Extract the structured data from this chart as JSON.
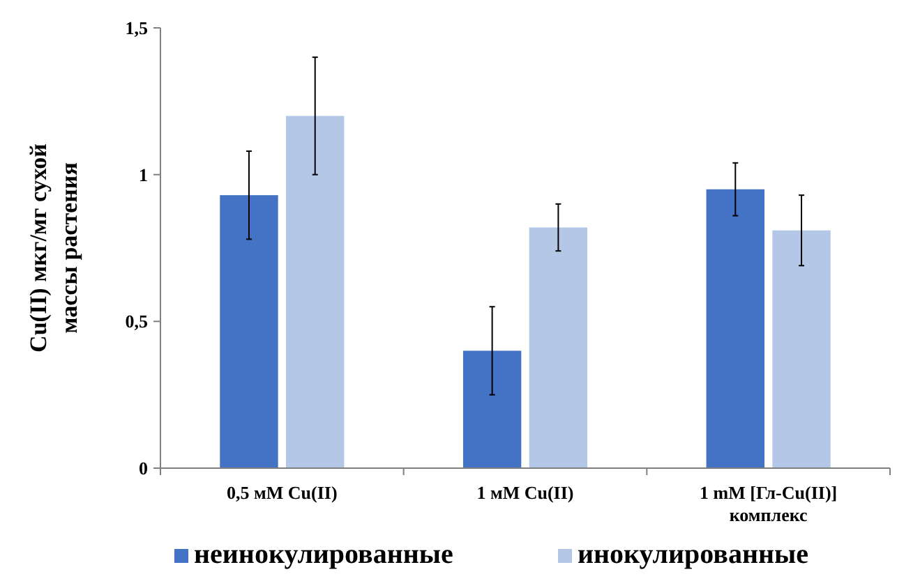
{
  "chart_data": {
    "type": "bar",
    "ylabel": "Cu(II) мкг/мг сухой массы растения",
    "categories": [
      "0,5 мМ Cu(II)",
      "1 мМ Cu(II)",
      "1 mM [Гл-Cu(II)] комплекс"
    ],
    "series": [
      {
        "name": "неинокулированные",
        "color": "#4472c4",
        "values": [
          0.93,
          0.4,
          0.95
        ],
        "errors": [
          0.15,
          0.15,
          0.09
        ]
      },
      {
        "name": "инокулированные",
        "color": "#b4c7e7",
        "values": [
          1.2,
          0.82,
          0.81
        ],
        "errors": [
          0.2,
          0.08,
          0.12
        ]
      }
    ],
    "ylim": [
      0,
      1.5
    ],
    "yticks": [
      {
        "value": 0,
        "label": "0"
      },
      {
        "value": 0.5,
        "label": "0,5"
      },
      {
        "value": 1,
        "label": "1"
      },
      {
        "value": 1.5,
        "label": "1,5"
      }
    ],
    "grid": false,
    "legend": "bottom"
  }
}
